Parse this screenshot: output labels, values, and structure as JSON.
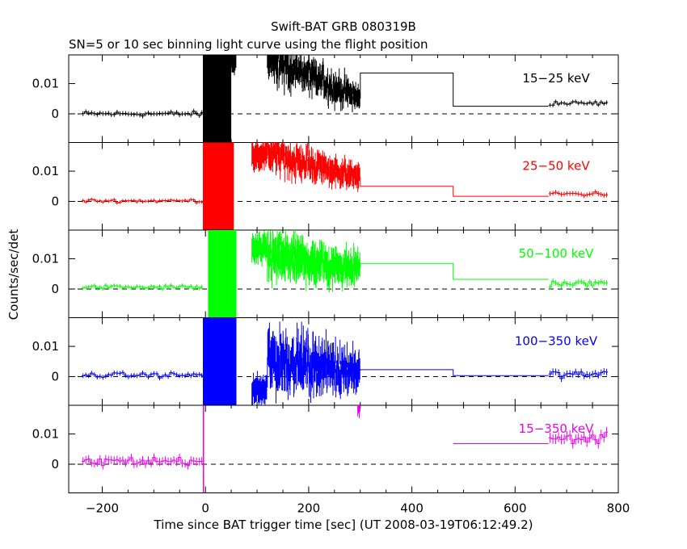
{
  "chart_data": {
    "type": "line",
    "title": "Swift-BAT GRB 080319B",
    "subtitle": "SN=5 or 10 sec binning light curve using the flight position",
    "xlabel": "Time since BAT trigger time [sec] (UT 2008-03-19T06:12:49.2)",
    "ylabel": "Counts/sec/det",
    "xlim": [
      -265,
      800
    ],
    "x_ticks": [
      -200,
      0,
      200,
      400,
      600,
      800
    ],
    "x_tick_labels": [
      "−200",
      "0",
      "200",
      "400",
      "600",
      "800"
    ],
    "y_ticks": [
      0,
      0.01
    ],
    "y_tick_labels": [
      "0",
      "0.01"
    ],
    "zero_line": "dashed",
    "panels": [
      {
        "band": "15−25 keV",
        "color": "#000000",
        "ylim": [
          -0.0095,
          0.0195
        ],
        "pre": {
          "start": -240,
          "end": -5,
          "level": 0.0,
          "amp": 0.0007
        },
        "burst": {
          "start": -5,
          "end": 50,
          "top": 0.0195
        },
        "burst_tail": {
          "start": 50,
          "end": 60,
          "mean": 0.018
        },
        "noisy": {
          "start": 120,
          "end": 300,
          "mean_start": 0.0185,
          "mean_end": 0.005,
          "amp": 0.004
        },
        "steps": [
          [
            300,
            480,
            0.0135
          ],
          [
            480,
            665,
            0.0025
          ]
        ],
        "post": {
          "start": 665,
          "end": 780,
          "level": 0.0035,
          "amp": 0.0006
        }
      },
      {
        "band": "25−50 keV",
        "color": "#ff0000",
        "ylim": [
          -0.0095,
          0.0195
        ],
        "pre": {
          "start": -240,
          "end": -5,
          "level": 0.0002,
          "amp": 0.0005
        },
        "burst": {
          "start": -5,
          "end": 55,
          "top": 0.0195
        },
        "burst_tail": {
          "start": 90,
          "end": 120,
          "mean": 0.0155
        },
        "noisy": {
          "start": 120,
          "end": 300,
          "mean_start": 0.016,
          "mean_end": 0.008,
          "amp": 0.0035
        },
        "steps": [
          [
            300,
            480,
            0.005
          ],
          [
            480,
            665,
            0.0017
          ]
        ],
        "post": {
          "start": 665,
          "end": 780,
          "level": 0.0025,
          "amp": 0.0007
        }
      },
      {
        "band": "50−100 keV",
        "color": "#00ff00",
        "ylim": [
          -0.0095,
          0.0195
        ],
        "pre": {
          "start": -240,
          "end": -5,
          "level": 0.0006,
          "amp": 0.0006
        },
        "burst": {
          "start": 5,
          "end": 60,
          "top": 0.0195
        },
        "burst_tail": {
          "start": 90,
          "end": 120,
          "mean": 0.013
        },
        "noisy": {
          "start": 120,
          "end": 300,
          "mean_start": 0.011,
          "mean_end": 0.007,
          "amp": 0.005
        },
        "steps": [
          [
            300,
            480,
            0.0085
          ],
          [
            480,
            665,
            0.0032
          ]
        ],
        "post": {
          "start": 665,
          "end": 780,
          "level": 0.0018,
          "amp": 0.0008
        }
      },
      {
        "band": "100−350 keV",
        "color": "#0000ff",
        "ylim": [
          -0.0095,
          0.0195
        ],
        "pre": {
          "start": -240,
          "end": -5,
          "level": 0.0005,
          "amp": 0.0007
        },
        "burst": {
          "start": -5,
          "end": 60,
          "top": 0.0195
        },
        "burst_tail": {
          "start": 90,
          "end": 120,
          "mean": -0.0045
        },
        "noisy": {
          "start": 120,
          "end": 300,
          "mean_start": 0.006,
          "mean_end": 0.002,
          "amp": 0.006
        },
        "steps": [
          [
            300,
            480,
            0.0023
          ],
          [
            480,
            665,
            0.0003
          ]
        ],
        "post": {
          "start": 665,
          "end": 780,
          "level": 0.0008,
          "amp": 0.001
        }
      },
      {
        "band": "15−350 keV",
        "color": "#ee00ee",
        "ylim": [
          -0.0095,
          0.0195
        ],
        "pre": {
          "start": -240,
          "end": -5,
          "level": 0.001,
          "amp": 0.0012
        },
        "burst": {
          "start": -5,
          "end": -3,
          "top": 0.0195
        },
        "burst_tail": {
          "start": 295,
          "end": 300,
          "mean": 0.0195
        },
        "noisy": null,
        "steps": [
          [
            480,
            665,
            0.0068
          ]
        ],
        "post": {
          "start": 665,
          "end": 780,
          "level": 0.0085,
          "amp": 0.0015
        }
      }
    ]
  }
}
